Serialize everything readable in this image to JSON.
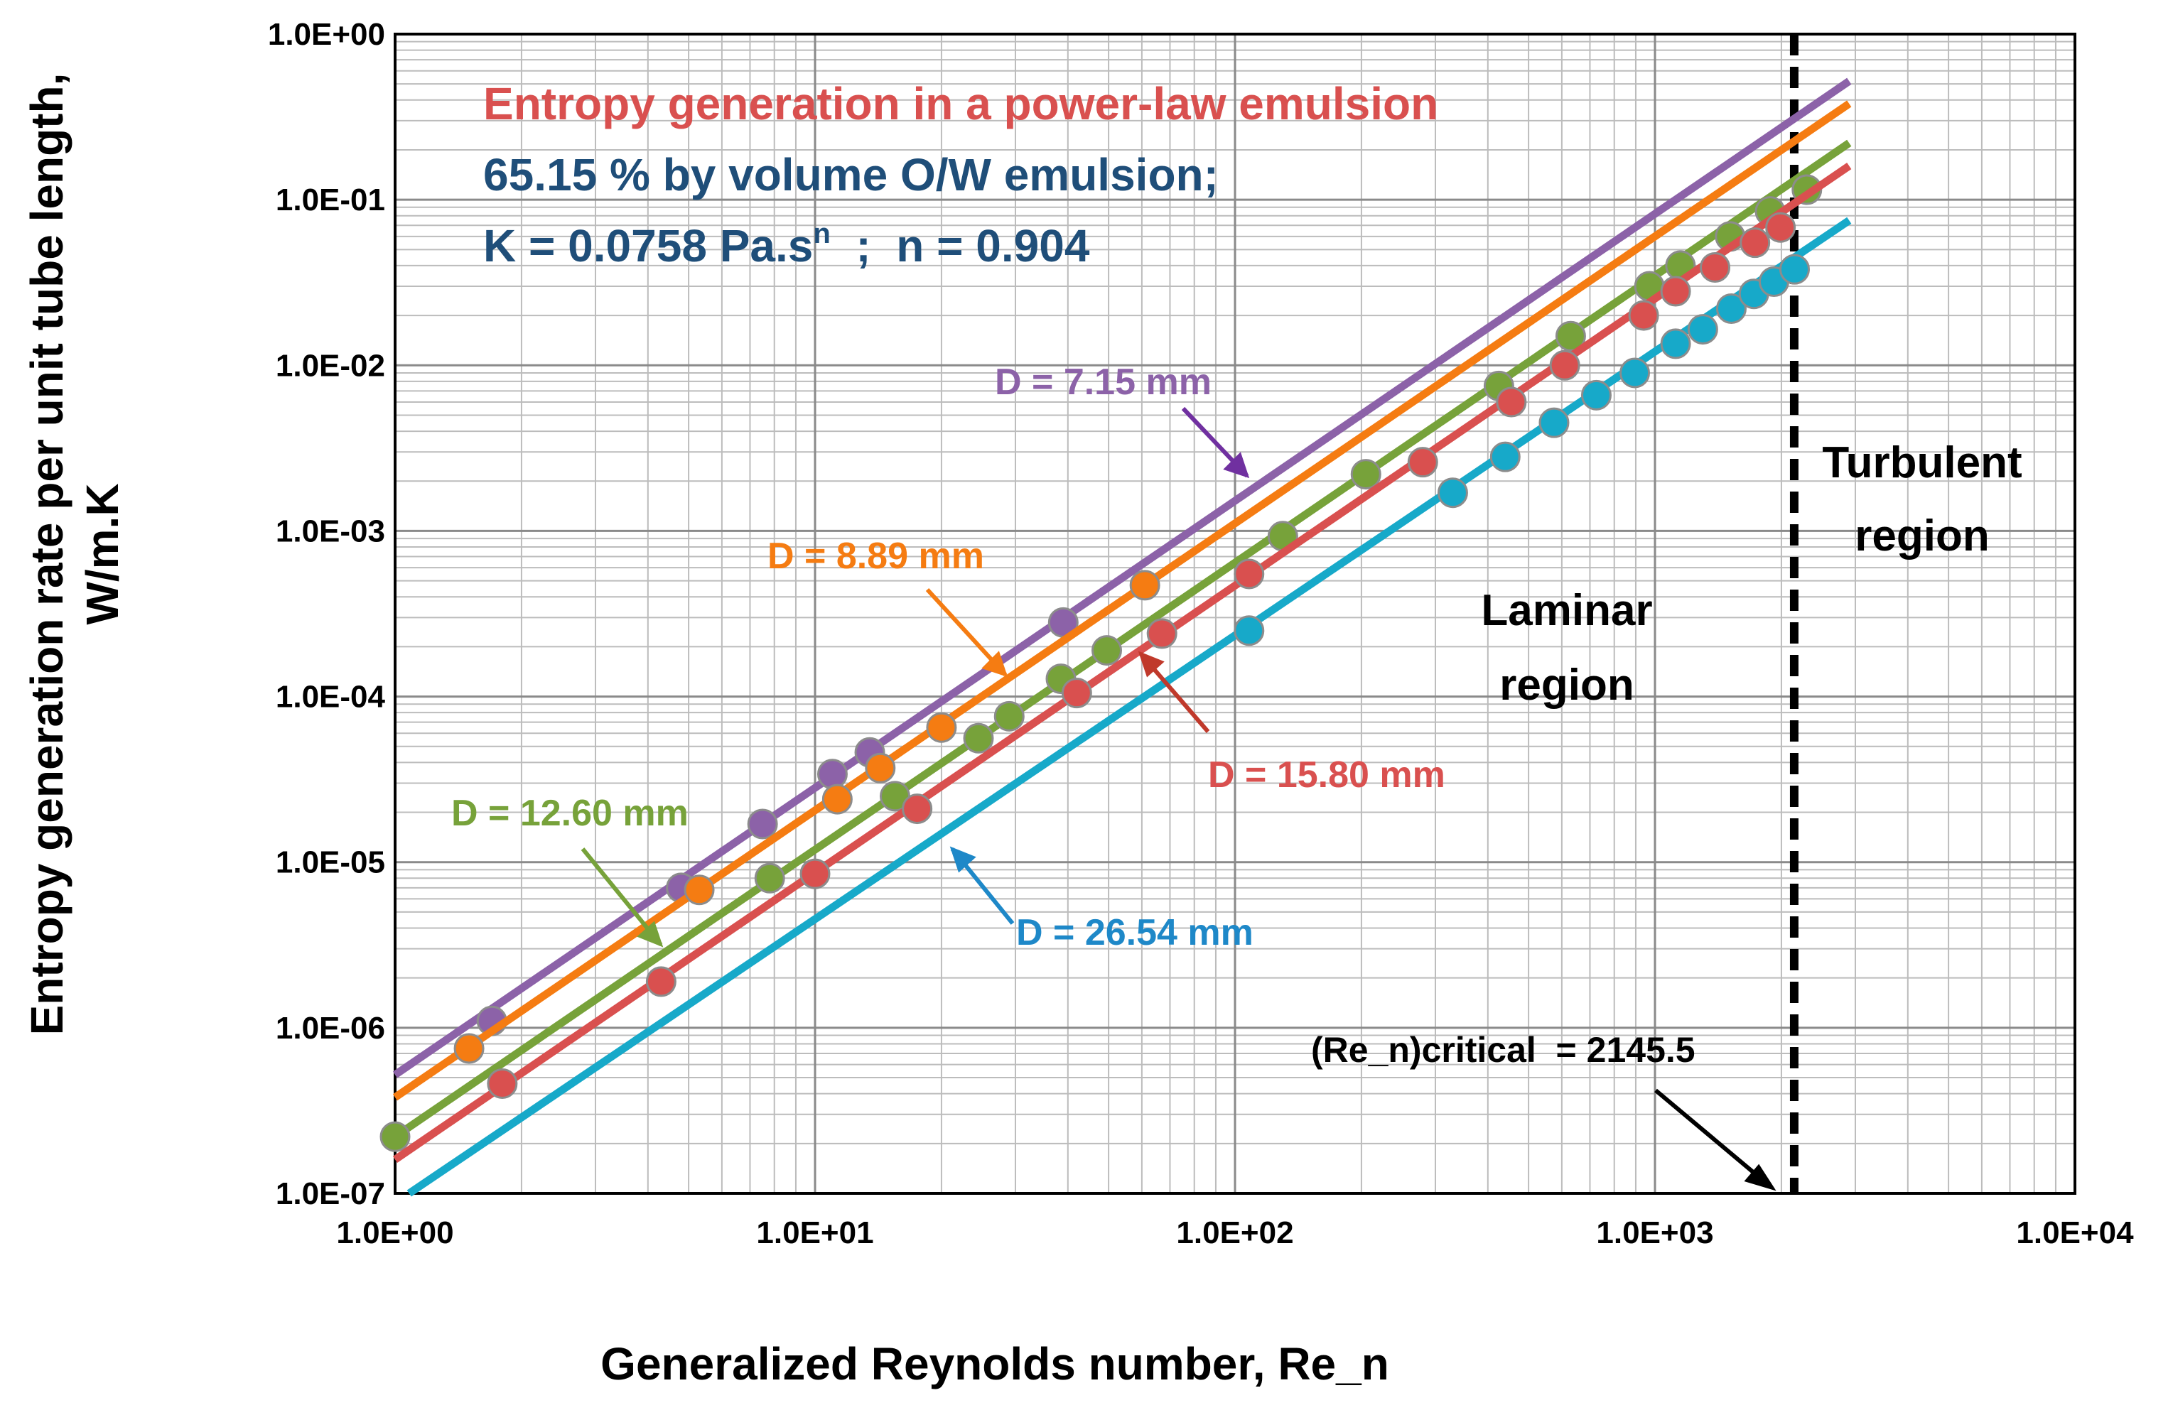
{
  "chart_data": {
    "type": "scatter",
    "scale": "log-log",
    "title_lines": {
      "line1": "Entropy generation in a power-law emulsion",
      "line2": "65.15 % by volume O/W emulsion;",
      "line3_prefix": "K = 0.0758 Pa.s",
      "line3_sup": "n",
      "line3_suffix": "  ;  n = 0.904"
    },
    "xlabel": "Generalized Reynolds number, Re_n",
    "ylabel_line1": "Entropy generation rate per unit tube length,",
    "ylabel_line2": "W/m.K",
    "xlim": [
      1,
      10000
    ],
    "ylim": [
      1e-07,
      1
    ],
    "x_tick_labels": [
      "1.0E+00",
      "1.0E+01",
      "1.0E+02",
      "1.0E+03",
      "1.0E+04"
    ],
    "y_tick_labels": [
      "1.0E+00",
      "1.0E-01",
      "1.0E-02",
      "1.0E-03",
      "1.0E-04",
      "1.0E-05",
      "1.0E-06",
      "1.0E-07"
    ],
    "grid": true,
    "series": [
      {
        "name": "D = 7.15 mm",
        "color": "#8C62A8",
        "line": {
          "x": [
            1,
            2900
          ],
          "y": [
            5.2e-07,
            0.52
          ]
        },
        "points": {
          "x": [
            1.7,
            4.8,
            7.5,
            11,
            13.5,
            39
          ],
          "y": [
            1.1e-06,
            7e-06,
            1.7e-05,
            3.4e-05,
            4.6e-05,
            0.00028
          ]
        }
      },
      {
        "name": "D = 8.89 mm",
        "color": "#F57C12",
        "line": {
          "x": [
            1,
            2900
          ],
          "y": [
            3.8e-07,
            0.38
          ]
        },
        "points": {
          "x": [
            1.5,
            5.3,
            11.3,
            14.3,
            20,
            61
          ],
          "y": [
            7.5e-07,
            6.8e-06,
            2.4e-05,
            3.7e-05,
            6.5e-05,
            0.00047
          ]
        }
      },
      {
        "name": "D = 12.60 mm",
        "color": "#77A23A",
        "line": {
          "x": [
            1,
            2900
          ],
          "y": [
            2.2e-07,
            0.22
          ]
        },
        "points": {
          "x": [
            1,
            7.8,
            15.5,
            24.5,
            29,
            38.5,
            49.5,
            130,
            205,
            425,
            630,
            970,
            1150,
            1510,
            1880,
            2300
          ],
          "y": [
            2.2e-07,
            8e-06,
            2.5e-05,
            5.6e-05,
            7.6e-05,
            0.000128,
            0.00019,
            0.00093,
            0.0022,
            0.0075,
            0.015,
            0.03,
            0.04,
            0.06,
            0.085,
            0.115
          ]
        }
      },
      {
        "name": "D = 15.80 mm",
        "color": "#D9504F",
        "line": {
          "x": [
            1,
            2900
          ],
          "y": [
            1.6e-07,
            0.16
          ]
        },
        "points": {
          "x": [
            1.8,
            4.3,
            10,
            17.5,
            42,
            67,
            108,
            280,
            455,
            610,
            940,
            1120,
            1390,
            1730,
            1990
          ],
          "y": [
            4.6e-07,
            1.9e-06,
            8.5e-06,
            2.1e-05,
            0.000105,
            0.00024,
            0.00055,
            0.0026,
            0.006,
            0.01,
            0.02,
            0.028,
            0.039,
            0.055,
            0.068
          ]
        }
      },
      {
        "name": "D = 26.54 mm",
        "color": "#17A9C9",
        "line": {
          "x": [
            1.08,
            2900
          ],
          "y": [
            1e-07,
            0.075
          ]
        },
        "points": {
          "x": [
            108,
            330,
            440,
            575,
            725,
            895,
            1120,
            1300,
            1520,
            1720,
            1920,
            2150
          ],
          "y": [
            0.00025,
            0.0017,
            0.0028,
            0.0045,
            0.0066,
            0.009,
            0.0135,
            0.0165,
            0.022,
            0.027,
            0.032,
            0.038
          ]
        }
      }
    ],
    "annotations": {
      "label_7_15": "D = 7.15 mm",
      "label_8_89": "D = 8.89 mm",
      "label_12_60": "D = 12.60 mm",
      "label_15_80": "D = 15.80 mm",
      "label_26_54": "D = 26.54 mm",
      "laminar_line1": "Laminar",
      "laminar_line2": "region",
      "turbulent_line1": "Turbulent",
      "turbulent_line2": "region",
      "critical_label": "(Re_n)critical  = 2145.5",
      "critical_value": 2145.5
    },
    "colors": {
      "title_red": "#D9504F",
      "title_blue": "#1F4E79",
      "label_purple": "#8C62A8",
      "label_orange": "#F57C12",
      "label_green": "#77A23A",
      "label_red": "#D9504F",
      "label_blue": "#1E88C8",
      "arrow_purple": "#7030A0",
      "arrow_orange": "#F57C12",
      "arrow_green": "#77A23A",
      "arrow_red": "#C0392B",
      "arrow_blue": "#1E88C8"
    }
  }
}
